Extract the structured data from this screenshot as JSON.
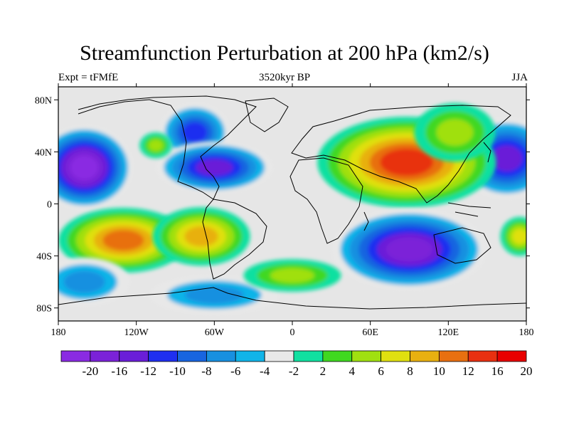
{
  "title": "Streamfunction Perturbation at 200 hPa (km2/s)",
  "left_label": "Expt = tFMfE",
  "center_label": "3520kyr BP",
  "right_label": "JJA",
  "map": {
    "projection": "cylindrical-equidistant",
    "lon_range": [
      -180,
      180
    ],
    "lat_range": [
      -90,
      90
    ],
    "background_color": "#e6e6e6",
    "y_ticks": [
      {
        "lat": 80,
        "label": "80N"
      },
      {
        "lat": 40,
        "label": "40N"
      },
      {
        "lat": 0,
        "label": "0"
      },
      {
        "lat": -40,
        "label": "40S"
      },
      {
        "lat": -80,
        "label": "80S"
      }
    ],
    "x_ticks": [
      {
        "lon": -180,
        "label": "180"
      },
      {
        "lon": -120,
        "label": "120W"
      },
      {
        "lon": -60,
        "label": "60W"
      },
      {
        "lon": 0,
        "label": "0"
      },
      {
        "lon": 60,
        "label": "60E"
      },
      {
        "lon": 120,
        "label": "120E"
      },
      {
        "lon": 180,
        "label": "180"
      }
    ]
  },
  "colorbar": {
    "colors": [
      "#8a2be2",
      "#7b22d8",
      "#6a1ed8",
      "#1f2ff0",
      "#1865e0",
      "#1890e0",
      "#10b4e8",
      "#e8e8e8",
      "#10e0a0",
      "#40d820",
      "#a0e010",
      "#e0e010",
      "#e8b010",
      "#e87010",
      "#e83010",
      "#e80000"
    ],
    "labels": [
      "-20",
      "-16",
      "-12",
      "-10",
      "-8",
      "-6",
      "-4",
      "-2",
      "2",
      "4",
      "6",
      "8",
      "10",
      "12",
      "16",
      "20"
    ]
  },
  "features": [
    {
      "kind": "ellipse",
      "lon": -160,
      "lat": 28,
      "rlon": 30,
      "rlat": 26,
      "level": -20
    },
    {
      "kind": "ellipse",
      "lon": 165,
      "lat": 35,
      "rlon": 30,
      "rlat": 25,
      "level": -12
    },
    {
      "kind": "ellipse",
      "lon": -75,
      "lat": 55,
      "rlon": 22,
      "rlat": 18,
      "level": -10
    },
    {
      "kind": "ellipse",
      "lon": -60,
      "lat": 28,
      "rlon": 36,
      "rlat": 16,
      "level": -12
    },
    {
      "kind": "ellipse",
      "lon": -105,
      "lat": 45,
      "rlon": 10,
      "rlat": 8,
      "level": 6
    },
    {
      "kind": "ellipse",
      "lon": 88,
      "lat": 32,
      "rlon": 55,
      "rlat": 28,
      "level": 16
    },
    {
      "kind": "ellipse",
      "lon": 125,
      "lat": 55,
      "rlon": 25,
      "rlat": 18,
      "level": 6
    },
    {
      "kind": "ellipse",
      "lon": -130,
      "lat": -28,
      "rlon": 40,
      "rlat": 20,
      "level": 12
    },
    {
      "kind": "ellipse",
      "lon": -70,
      "lat": -25,
      "rlon": 30,
      "rlat": 18,
      "level": 10
    },
    {
      "kind": "ellipse",
      "lon": 90,
      "lat": -35,
      "rlon": 48,
      "rlat": 25,
      "level": -16
    },
    {
      "kind": "ellipse",
      "lon": -160,
      "lat": -60,
      "rlon": 28,
      "rlat": 15,
      "level": -6
    },
    {
      "kind": "ellipse",
      "lon": -60,
      "lat": -70,
      "rlon": 40,
      "rlat": 12,
      "level": -6
    },
    {
      "kind": "ellipse",
      "lon": 175,
      "lat": -25,
      "rlon": 12,
      "rlat": 12,
      "level": 8
    },
    {
      "kind": "ellipse",
      "lon": 0,
      "lat": -55,
      "rlon": 30,
      "rlat": 10,
      "level": 6
    }
  ]
}
